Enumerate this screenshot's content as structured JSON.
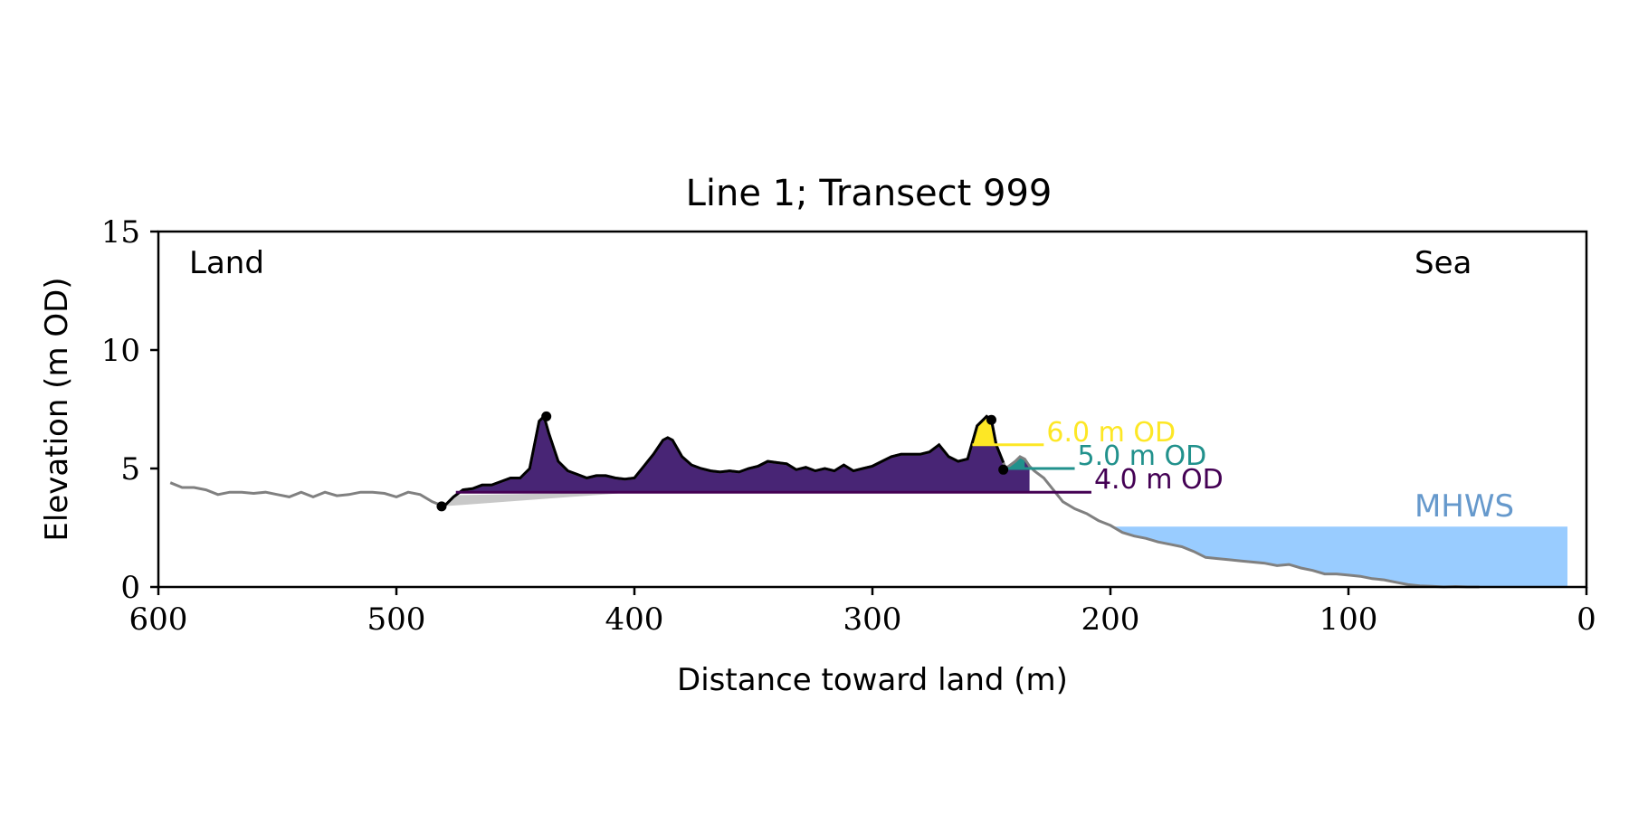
{
  "chart_data": {
    "type": "area",
    "title": "Line 1; Transect 999",
    "xlabel": "Distance toward land (m)",
    "ylabel": "Elevation (m OD)",
    "xlim": [
      600,
      0
    ],
    "ylim": [
      0,
      15
    ],
    "x_ticks": [
      600,
      500,
      400,
      300,
      200,
      100,
      0
    ],
    "y_ticks": [
      0,
      5,
      10,
      15
    ],
    "grid": false,
    "annotations": {
      "land": "Land",
      "sea": "Sea"
    },
    "colors": {
      "profile": "#808080",
      "dune_outline": "#000000",
      "fill_4m": "#482575",
      "fill_5m": "#21918c",
      "fill_6m": "#fde725",
      "trough": "#c8c8c8",
      "mhws": "#99ccff",
      "mhws_label": "#6699cc"
    },
    "profile": {
      "x": [
        595,
        590,
        585,
        580,
        575,
        570,
        565,
        560,
        555,
        550,
        545,
        540,
        535,
        530,
        525,
        520,
        515,
        510,
        505,
        500,
        495,
        490,
        485,
        480,
        476,
        472,
        468,
        464,
        460,
        456,
        452,
        448,
        444,
        440,
        438,
        436,
        432,
        428,
        424,
        420,
        416,
        412,
        408,
        404,
        400,
        396,
        392,
        388,
        386,
        384,
        380,
        376,
        372,
        368,
        364,
        360,
        356,
        352,
        348,
        344,
        340,
        336,
        332,
        328,
        324,
        320,
        316,
        312,
        308,
        304,
        300,
        296,
        292,
        288,
        284,
        280,
        276,
        272,
        268,
        264,
        260,
        256,
        252,
        250,
        248,
        244,
        240,
        238,
        236,
        234,
        232,
        228,
        224,
        220,
        215,
        210,
        205,
        200,
        195,
        190,
        185,
        180,
        175,
        170,
        165,
        160,
        155,
        150,
        145,
        140,
        135,
        130,
        125,
        120,
        115,
        110,
        105,
        100,
        95,
        90,
        85,
        80,
        75,
        70,
        65,
        60,
        55,
        50,
        45
      ],
      "y": [
        4.4,
        4.2,
        4.2,
        4.1,
        3.9,
        4.0,
        4.0,
        3.95,
        4.0,
        3.9,
        3.8,
        4.0,
        3.8,
        4.0,
        3.85,
        3.9,
        4.0,
        4.0,
        3.95,
        3.8,
        4.0,
        3.9,
        3.6,
        3.4,
        3.8,
        4.1,
        4.15,
        4.3,
        4.3,
        4.45,
        4.6,
        4.6,
        5.0,
        7.0,
        7.2,
        6.5,
        5.3,
        4.9,
        4.75,
        4.6,
        4.7,
        4.7,
        4.6,
        4.55,
        4.6,
        5.1,
        5.6,
        6.2,
        6.3,
        6.2,
        5.5,
        5.15,
        5.0,
        4.9,
        4.85,
        4.9,
        4.85,
        5.0,
        5.1,
        5.3,
        5.25,
        5.2,
        4.95,
        5.05,
        4.9,
        5.0,
        4.9,
        5.15,
        4.9,
        5.0,
        5.1,
        5.3,
        5.5,
        5.6,
        5.6,
        5.6,
        5.7,
        6.0,
        5.5,
        5.3,
        5.4,
        6.8,
        7.2,
        7.05,
        6.0,
        5.0,
        5.3,
        5.5,
        5.4,
        5.1,
        4.9,
        4.6,
        4.1,
        3.6,
        3.3,
        3.1,
        2.8,
        2.6,
        2.3,
        2.15,
        2.05,
        1.9,
        1.8,
        1.7,
        1.5,
        1.25,
        1.2,
        1.15,
        1.1,
        1.05,
        1.0,
        0.9,
        0.95,
        0.8,
        0.7,
        0.55,
        0.55,
        0.5,
        0.45,
        0.35,
        0.3,
        0.2,
        0.1,
        0.05,
        0.03,
        0.0,
        0.02,
        0.0,
        0.0
      ]
    },
    "dune_toe": {
      "x": 481,
      "y": 3.4
    },
    "dune_crest": {
      "x": 437,
      "y": 7.2
    },
    "seaward_crest": {
      "x": 250,
      "y": 7.05
    },
    "seaward_toe": {
      "x": 245,
      "y": 4.95
    },
    "levels": [
      {
        "label": "4.0 m OD",
        "value": 4.0,
        "x_start": 475,
        "x_end": 208,
        "color": "#440154"
      },
      {
        "label": "5.0 m OD",
        "value": 5.0,
        "x_start": 245,
        "x_end": 215,
        "color": "#21918c"
      },
      {
        "label": "6.0 m OD",
        "value": 6.0,
        "x_start": 258,
        "x_end": 228,
        "color": "#fde725"
      }
    ],
    "mhws": {
      "label": "MHWS",
      "value": 2.55,
      "x_start": 200,
      "x_end": 8
    }
  }
}
